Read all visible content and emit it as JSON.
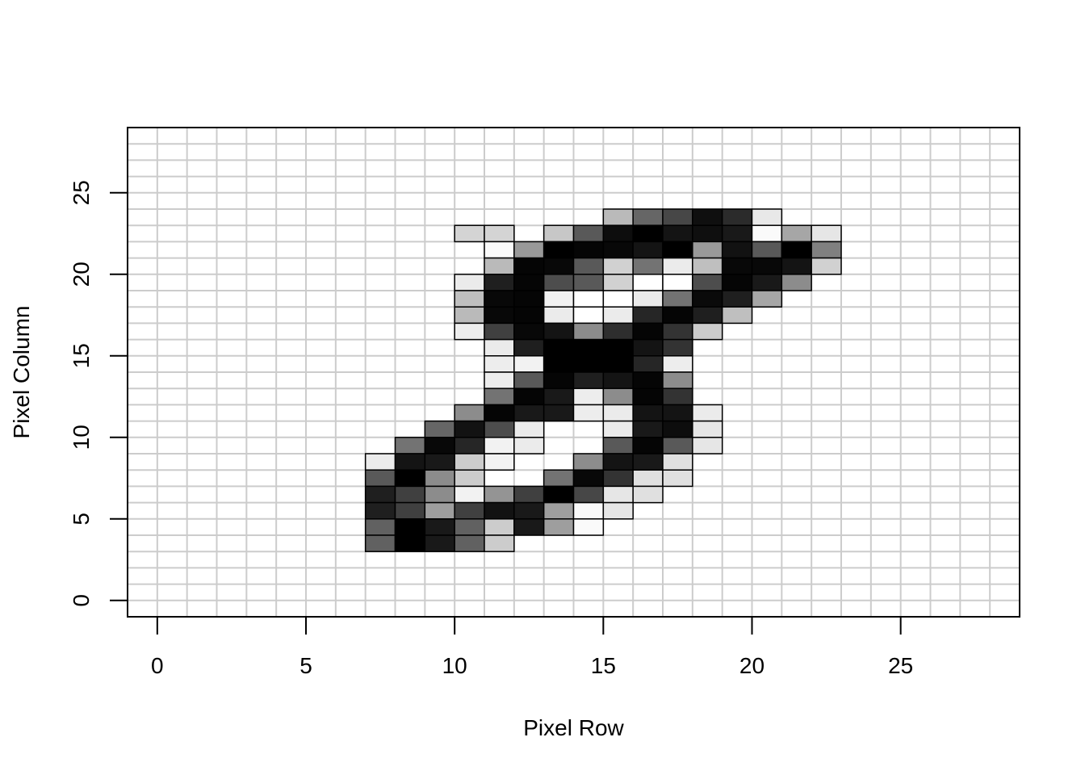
{
  "chart_data": {
    "type": "heatmap",
    "title": "",
    "xlabel": "Pixel Row",
    "ylabel": "Pixel Column",
    "xlim": [
      -1,
      29
    ],
    "ylim": [
      -1,
      29
    ],
    "x_ticks": [
      0,
      5,
      10,
      15,
      20,
      25
    ],
    "y_ticks": [
      0,
      5,
      10,
      15,
      20,
      25
    ],
    "grid": true,
    "grid_color": "#cccccc",
    "cell_border_color": "#000000",
    "value_scale": "grayscale: 0 = white, 1 = black",
    "cells": [
      {
        "row": 10,
        "col": 22,
        "value": 0.17
      },
      {
        "row": 11,
        "col": 22,
        "value": 0.17
      },
      {
        "row": 15,
        "col": 23,
        "value": 0.27
      },
      {
        "row": 16,
        "col": 23,
        "value": 0.6
      },
      {
        "row": 17,
        "col": 23,
        "value": 0.72
      },
      {
        "row": 18,
        "col": 23,
        "value": 0.94
      },
      {
        "row": 19,
        "col": 23,
        "value": 0.83
      },
      {
        "row": 20,
        "col": 23,
        "value": 0.09
      },
      {
        "row": 13,
        "col": 22,
        "value": 0.22
      },
      {
        "row": 14,
        "col": 22,
        "value": 0.65
      },
      {
        "row": 15,
        "col": 22,
        "value": 0.95
      },
      {
        "row": 16,
        "col": 22,
        "value": 1.0
      },
      {
        "row": 17,
        "col": 22,
        "value": 0.92
      },
      {
        "row": 18,
        "col": 22,
        "value": 0.94
      },
      {
        "row": 19,
        "col": 22,
        "value": 0.9
      },
      {
        "row": 20,
        "col": 22,
        "value": 0.02
      },
      {
        "row": 21,
        "col": 22,
        "value": 0.35
      },
      {
        "row": 22,
        "col": 22,
        "value": 0.1
      },
      {
        "row": 11,
        "col": 21,
        "value": 0.02
      },
      {
        "row": 12,
        "col": 21,
        "value": 0.4
      },
      {
        "row": 13,
        "col": 21,
        "value": 1.0
      },
      {
        "row": 14,
        "col": 21,
        "value": 0.98
      },
      {
        "row": 15,
        "col": 21,
        "value": 0.97
      },
      {
        "row": 16,
        "col": 21,
        "value": 0.92
      },
      {
        "row": 17,
        "col": 21,
        "value": 1.0
      },
      {
        "row": 18,
        "col": 21,
        "value": 0.4
      },
      {
        "row": 19,
        "col": 21,
        "value": 0.93
      },
      {
        "row": 20,
        "col": 21,
        "value": 0.65
      },
      {
        "row": 21,
        "col": 21,
        "value": 1.0
      },
      {
        "row": 22,
        "col": 21,
        "value": 0.5
      },
      {
        "row": 11,
        "col": 20,
        "value": 0.27
      },
      {
        "row": 12,
        "col": 20,
        "value": 0.98
      },
      {
        "row": 13,
        "col": 20,
        "value": 0.97
      },
      {
        "row": 14,
        "col": 20,
        "value": 0.65
      },
      {
        "row": 15,
        "col": 20,
        "value": 0.18
      },
      {
        "row": 16,
        "col": 20,
        "value": 0.55
      },
      {
        "row": 17,
        "col": 20,
        "value": 0.08
      },
      {
        "row": 18,
        "col": 20,
        "value": 0.25
      },
      {
        "row": 19,
        "col": 20,
        "value": 0.97
      },
      {
        "row": 20,
        "col": 20,
        "value": 0.97
      },
      {
        "row": 21,
        "col": 20,
        "value": 0.92
      },
      {
        "row": 22,
        "col": 20,
        "value": 0.18
      },
      {
        "row": 10,
        "col": 19,
        "value": 0.08
      },
      {
        "row": 11,
        "col": 19,
        "value": 0.88
      },
      {
        "row": 12,
        "col": 19,
        "value": 0.98
      },
      {
        "row": 13,
        "col": 19,
        "value": 0.7
      },
      {
        "row": 14,
        "col": 19,
        "value": 0.65
      },
      {
        "row": 15,
        "col": 19,
        "value": 0.18
      },
      {
        "row": 16,
        "col": 19,
        "value": 0.0
      },
      {
        "row": 17,
        "col": 19,
        "value": 0.0
      },
      {
        "row": 18,
        "col": 19,
        "value": 0.7
      },
      {
        "row": 19,
        "col": 19,
        "value": 0.98
      },
      {
        "row": 20,
        "col": 19,
        "value": 0.9
      },
      {
        "row": 21,
        "col": 19,
        "value": 0.45
      },
      {
        "row": 10,
        "col": 18,
        "value": 0.25
      },
      {
        "row": 11,
        "col": 18,
        "value": 0.97
      },
      {
        "row": 12,
        "col": 18,
        "value": 0.98
      },
      {
        "row": 13,
        "col": 18,
        "value": 0.05
      },
      {
        "row": 14,
        "col": 18,
        "value": 0.0
      },
      {
        "row": 15,
        "col": 18,
        "value": 0.0
      },
      {
        "row": 16,
        "col": 18,
        "value": 0.08
      },
      {
        "row": 17,
        "col": 18,
        "value": 0.55
      },
      {
        "row": 18,
        "col": 18,
        "value": 0.96
      },
      {
        "row": 19,
        "col": 18,
        "value": 0.88
      },
      {
        "row": 20,
        "col": 18,
        "value": 0.35
      },
      {
        "row": 10,
        "col": 17,
        "value": 0.27
      },
      {
        "row": 11,
        "col": 17,
        "value": 0.97
      },
      {
        "row": 12,
        "col": 17,
        "value": 0.98
      },
      {
        "row": 13,
        "col": 17,
        "value": 0.08
      },
      {
        "row": 14,
        "col": 17,
        "value": 0.0
      },
      {
        "row": 15,
        "col": 17,
        "value": 0.08
      },
      {
        "row": 16,
        "col": 17,
        "value": 0.85
      },
      {
        "row": 17,
        "col": 17,
        "value": 0.98
      },
      {
        "row": 18,
        "col": 17,
        "value": 0.88
      },
      {
        "row": 19,
        "col": 17,
        "value": 0.25
      },
      {
        "row": 10,
        "col": 16,
        "value": 0.07
      },
      {
        "row": 11,
        "col": 16,
        "value": 0.75
      },
      {
        "row": 12,
        "col": 16,
        "value": 0.97
      },
      {
        "row": 13,
        "col": 16,
        "value": 0.92
      },
      {
        "row": 14,
        "col": 16,
        "value": 0.45
      },
      {
        "row": 15,
        "col": 16,
        "value": 0.82
      },
      {
        "row": 16,
        "col": 16,
        "value": 0.98
      },
      {
        "row": 17,
        "col": 16,
        "value": 0.8
      },
      {
        "row": 18,
        "col": 16,
        "value": 0.2
      },
      {
        "row": 11,
        "col": 15,
        "value": 0.08
      },
      {
        "row": 12,
        "col": 15,
        "value": 0.88
      },
      {
        "row": 13,
        "col": 15,
        "value": 1.0
      },
      {
        "row": 14,
        "col": 15,
        "value": 1.0
      },
      {
        "row": 15,
        "col": 15,
        "value": 1.0
      },
      {
        "row": 16,
        "col": 15,
        "value": 0.92
      },
      {
        "row": 17,
        "col": 15,
        "value": 0.8
      },
      {
        "row": 11,
        "col": 14,
        "value": 0.07
      },
      {
        "row": 12,
        "col": 14,
        "value": 0.05
      },
      {
        "row": 13,
        "col": 14,
        "value": 1.0
      },
      {
        "row": 14,
        "col": 14,
        "value": 1.0
      },
      {
        "row": 15,
        "col": 14,
        "value": 1.0
      },
      {
        "row": 16,
        "col": 14,
        "value": 0.85
      },
      {
        "row": 17,
        "col": 14,
        "value": 0.07
      },
      {
        "row": 11,
        "col": 13,
        "value": 0.07
      },
      {
        "row": 12,
        "col": 13,
        "value": 0.65
      },
      {
        "row": 13,
        "col": 13,
        "value": 0.98
      },
      {
        "row": 14,
        "col": 13,
        "value": 0.88
      },
      {
        "row": 15,
        "col": 13,
        "value": 0.92
      },
      {
        "row": 16,
        "col": 13,
        "value": 0.98
      },
      {
        "row": 17,
        "col": 13,
        "value": 0.45
      },
      {
        "row": 11,
        "col": 12,
        "value": 0.55
      },
      {
        "row": 12,
        "col": 12,
        "value": 0.98
      },
      {
        "row": 13,
        "col": 12,
        "value": 0.9
      },
      {
        "row": 14,
        "col": 12,
        "value": 0.07
      },
      {
        "row": 15,
        "col": 12,
        "value": 0.45
      },
      {
        "row": 16,
        "col": 12,
        "value": 0.98
      },
      {
        "row": 17,
        "col": 12,
        "value": 0.8
      },
      {
        "row": 10,
        "col": 11,
        "value": 0.45
      },
      {
        "row": 11,
        "col": 11,
        "value": 0.98
      },
      {
        "row": 12,
        "col": 11,
        "value": 0.9
      },
      {
        "row": 13,
        "col": 11,
        "value": 0.9
      },
      {
        "row": 14,
        "col": 11,
        "value": 0.07
      },
      {
        "row": 15,
        "col": 11,
        "value": 0.08
      },
      {
        "row": 16,
        "col": 11,
        "value": 0.92
      },
      {
        "row": 17,
        "col": 11,
        "value": 0.92
      },
      {
        "row": 18,
        "col": 11,
        "value": 0.08
      },
      {
        "row": 9,
        "col": 10,
        "value": 0.6
      },
      {
        "row": 10,
        "col": 10,
        "value": 0.93
      },
      {
        "row": 11,
        "col": 10,
        "value": 0.7
      },
      {
        "row": 12,
        "col": 10,
        "value": 0.08
      },
      {
        "row": 15,
        "col": 10,
        "value": 0.08
      },
      {
        "row": 16,
        "col": 10,
        "value": 0.9
      },
      {
        "row": 17,
        "col": 10,
        "value": 0.95
      },
      {
        "row": 18,
        "col": 10,
        "value": 0.1
      },
      {
        "row": 8,
        "col": 9,
        "value": 0.55
      },
      {
        "row": 9,
        "col": 9,
        "value": 0.97
      },
      {
        "row": 10,
        "col": 9,
        "value": 0.85
      },
      {
        "row": 11,
        "col": 9,
        "value": 0.05
      },
      {
        "row": 12,
        "col": 9,
        "value": 0.08
      },
      {
        "row": 15,
        "col": 9,
        "value": 0.65
      },
      {
        "row": 16,
        "col": 9,
        "value": 0.98
      },
      {
        "row": 17,
        "col": 9,
        "value": 0.65
      },
      {
        "row": 18,
        "col": 9,
        "value": 0.1
      },
      {
        "row": 7,
        "col": 8,
        "value": 0.08
      },
      {
        "row": 8,
        "col": 8,
        "value": 0.92
      },
      {
        "row": 9,
        "col": 8,
        "value": 0.9
      },
      {
        "row": 10,
        "col": 8,
        "value": 0.2
      },
      {
        "row": 11,
        "col": 8,
        "value": 0.05
      },
      {
        "row": 14,
        "col": 8,
        "value": 0.45
      },
      {
        "row": 15,
        "col": 8,
        "value": 0.92
      },
      {
        "row": 16,
        "col": 8,
        "value": 0.9
      },
      {
        "row": 17,
        "col": 8,
        "value": 0.12
      },
      {
        "row": 7,
        "col": 7,
        "value": 0.65
      },
      {
        "row": 8,
        "col": 7,
        "value": 1.0
      },
      {
        "row": 9,
        "col": 7,
        "value": 0.45
      },
      {
        "row": 10,
        "col": 7,
        "value": 0.2
      },
      {
        "row": 13,
        "col": 7,
        "value": 0.55
      },
      {
        "row": 14,
        "col": 7,
        "value": 0.97
      },
      {
        "row": 15,
        "col": 7,
        "value": 0.8
      },
      {
        "row": 16,
        "col": 7,
        "value": 0.12
      },
      {
        "row": 17,
        "col": 7,
        "value": 0.12
      },
      {
        "row": 7,
        "col": 6,
        "value": 0.88
      },
      {
        "row": 8,
        "col": 6,
        "value": 0.75
      },
      {
        "row": 9,
        "col": 6,
        "value": 0.45
      },
      {
        "row": 10,
        "col": 6,
        "value": 0.05
      },
      {
        "row": 11,
        "col": 6,
        "value": 0.42
      },
      {
        "row": 12,
        "col": 6,
        "value": 0.75
      },
      {
        "row": 13,
        "col": 6,
        "value": 1.0
      },
      {
        "row": 14,
        "col": 6,
        "value": 0.72
      },
      {
        "row": 15,
        "col": 6,
        "value": 0.1
      },
      {
        "row": 16,
        "col": 6,
        "value": 0.12
      },
      {
        "row": 7,
        "col": 5,
        "value": 0.88
      },
      {
        "row": 8,
        "col": 5,
        "value": 0.75
      },
      {
        "row": 9,
        "col": 5,
        "value": 0.38
      },
      {
        "row": 10,
        "col": 5,
        "value": 0.75
      },
      {
        "row": 11,
        "col": 5,
        "value": 0.93
      },
      {
        "row": 12,
        "col": 5,
        "value": 0.9
      },
      {
        "row": 13,
        "col": 5,
        "value": 0.38
      },
      {
        "row": 14,
        "col": 5,
        "value": 0.02
      },
      {
        "row": 15,
        "col": 5,
        "value": 0.1
      },
      {
        "row": 7,
        "col": 4,
        "value": 0.62
      },
      {
        "row": 8,
        "col": 4,
        "value": 1.0
      },
      {
        "row": 9,
        "col": 4,
        "value": 0.9
      },
      {
        "row": 10,
        "col": 4,
        "value": 0.62
      },
      {
        "row": 11,
        "col": 4,
        "value": 0.2
      },
      {
        "row": 12,
        "col": 4,
        "value": 0.9
      },
      {
        "row": 13,
        "col": 4,
        "value": 0.38
      },
      {
        "row": 14,
        "col": 4,
        "value": 0.02
      },
      {
        "row": 7,
        "col": 3,
        "value": 0.62
      },
      {
        "row": 8,
        "col": 3,
        "value": 1.0
      },
      {
        "row": 9,
        "col": 3,
        "value": 0.9
      },
      {
        "row": 10,
        "col": 3,
        "value": 0.62
      },
      {
        "row": 11,
        "col": 3,
        "value": 0.2
      }
    ]
  }
}
